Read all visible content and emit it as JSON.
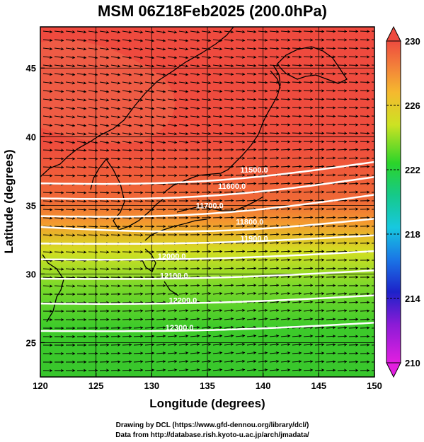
{
  "title": "MSM 06Z18Feb2025 (200.0hPa)",
  "xlabel": "Longitude (degrees)",
  "ylabel": "Latitude  (degrees)",
  "credits": [
    "Drawing by DCL (https://www.gfd-dennou.org/library/dcl/)",
    "Data from http://database.rish.kyoto-u.ac.jp/arch/jmadata/"
  ],
  "colors": {
    "arrows": "#000000",
    "contours": "#ffffff",
    "coast": "#000000",
    "hot": "#ef4a3e",
    "warm": "#f49a2e",
    "mid": "#d4df22",
    "cool": "#3ccb2a"
  },
  "chart_data": {
    "type": "heatmap",
    "x_range": [
      120,
      150
    ],
    "y_range": [
      22.5,
      48
    ],
    "x_ticks": [
      120,
      125,
      130,
      135,
      140,
      145,
      150
    ],
    "y_ticks": [
      25,
      30,
      35,
      40,
      45
    ],
    "colorbar": {
      "range": [
        210,
        230
      ],
      "ticks": [
        210,
        214,
        218,
        222,
        226,
        230
      ]
    },
    "contours": [
      {
        "label": "11500.0",
        "lon": 139.2,
        "lat": 37.6
      },
      {
        "label": "11600.0",
        "lon": 137.2,
        "lat": 36.4
      },
      {
        "label": "11700.0",
        "lon": 135.2,
        "lat": 35.0
      },
      {
        "label": "11800.0",
        "lon": 138.8,
        "lat": 33.8
      },
      {
        "label": "11900.0",
        "lon": 139.2,
        "lat": 32.6
      },
      {
        "label": "12000.0",
        "lon": 131.8,
        "lat": 31.3
      },
      {
        "label": "12100.0",
        "lon": 132.0,
        "lat": 29.9
      },
      {
        "label": "12200.0",
        "lon": 132.8,
        "lat": 28.1
      },
      {
        "label": "12300.0",
        "lon": 132.5,
        "lat": 26.1
      }
    ]
  }
}
